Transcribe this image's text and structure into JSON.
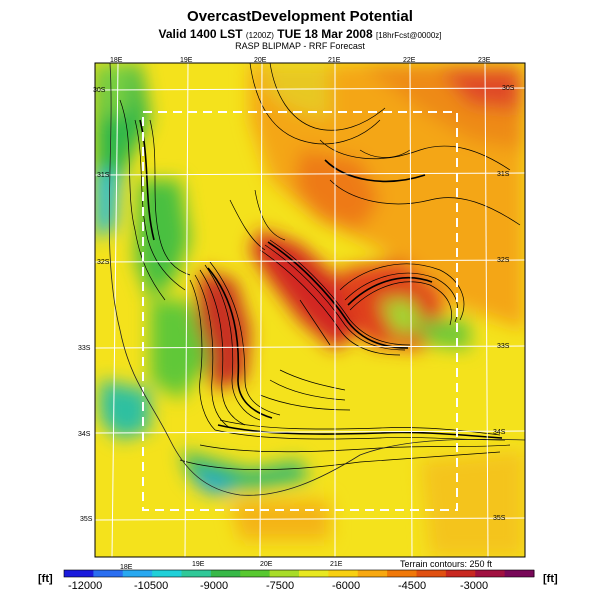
{
  "header": {
    "title": "OvercastDevelopment Potential",
    "valid_prefix": "Valid 1400 LST",
    "valid_small1": "(1200Z)",
    "valid_date": "TUE 18 Mar 2008",
    "valid_small2": "[18hrFcst@0000z]",
    "forecast_line": "RASP BLIPMAP - RRF Forecast"
  },
  "map": {
    "lon_labels_top": [
      "18E",
      "19E",
      "20E",
      "21E",
      "22E",
      "23E"
    ],
    "lon_labels_bottom": [
      "18E",
      "19E",
      "20E",
      "21E"
    ],
    "lat_labels_left": [
      "30S",
      "31S",
      "32S",
      "33S",
      "34S",
      "35S"
    ],
    "lat_labels_right": [
      "30S",
      "31S",
      "32S",
      "33S",
      "34S",
      "35S"
    ],
    "terrain_note": "Terrain contours: 250 ft"
  },
  "colorbar": {
    "unit_left": "[ft]",
    "unit_right": "[ft]",
    "tick_labels": [
      "-12000",
      "-10500",
      "-9000",
      "-7500",
      "-6000",
      "-4500",
      "-3000"
    ],
    "colors": [
      "#1a1adc",
      "#2a6ef0",
      "#28a8f0",
      "#20d0d8",
      "#30c898",
      "#38b848",
      "#58c830",
      "#a8dc28",
      "#e8e820",
      "#f8d010",
      "#f8a810",
      "#f07808",
      "#e05010",
      "#c82820",
      "#a01040",
      "#780858"
    ]
  }
}
